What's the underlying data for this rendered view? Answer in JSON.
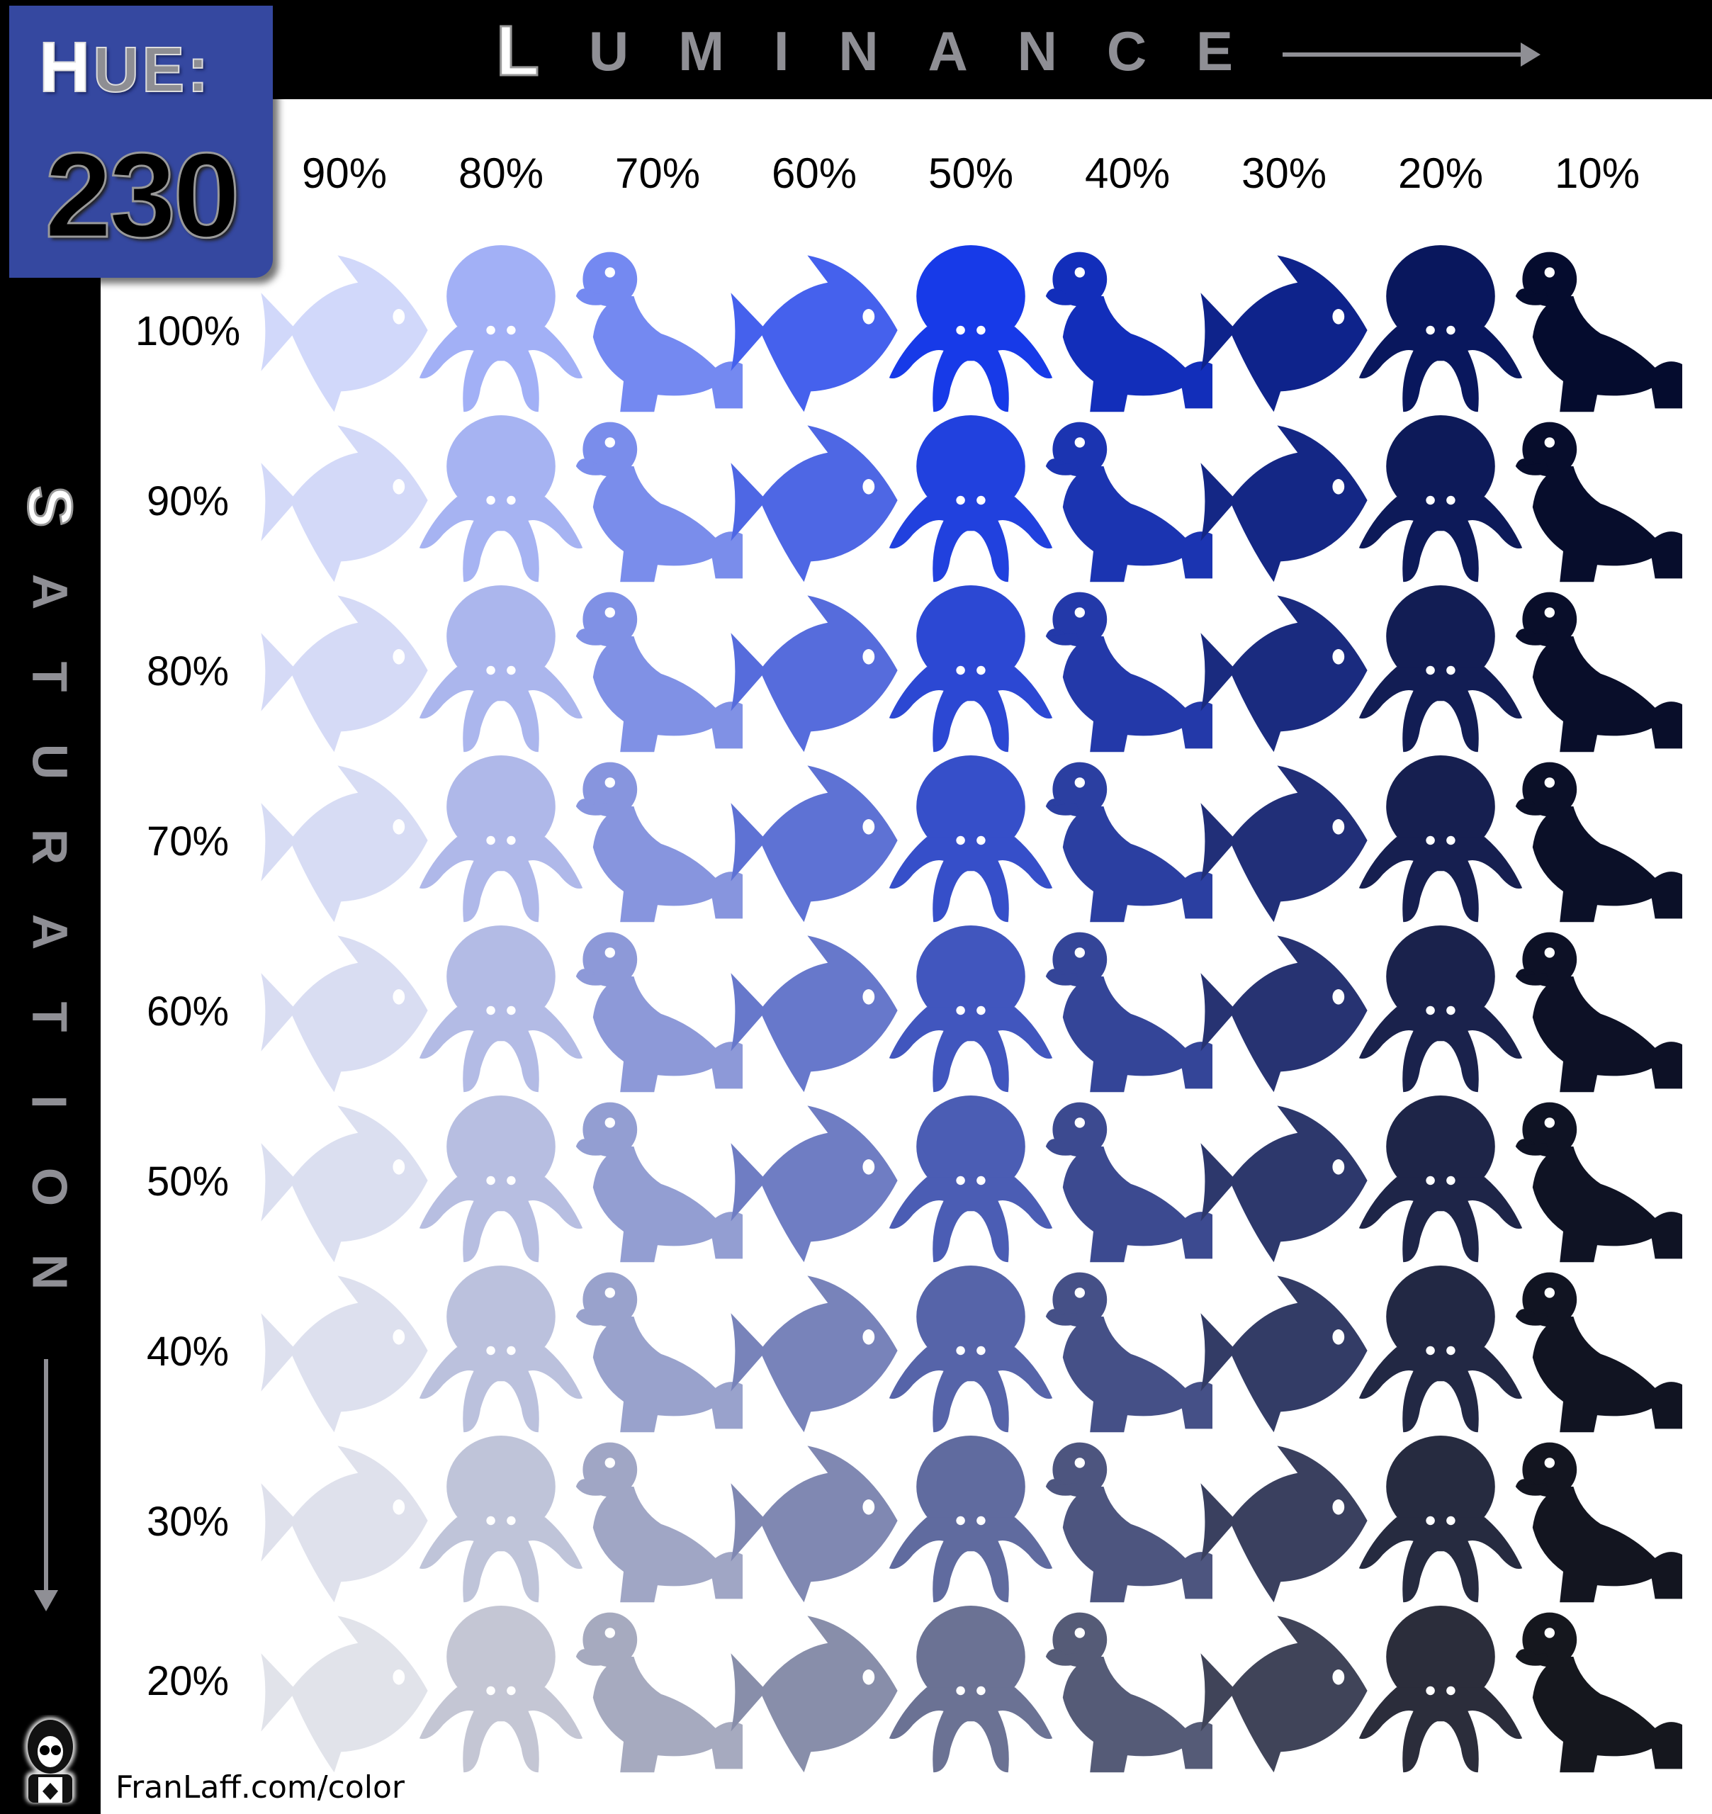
{
  "hue": {
    "label_cap": "H",
    "label_rest": "UE:",
    "value": "230"
  },
  "luminance_title": [
    "L",
    "U",
    "M",
    "I",
    "N",
    "A",
    "N",
    "C",
    "E"
  ],
  "saturation_title": [
    "S",
    "A",
    "T",
    "U",
    "R",
    "A",
    "T",
    "I",
    "O",
    "N"
  ],
  "columns": [
    "90%",
    "80%",
    "70%",
    "60%",
    "50%",
    "40%",
    "30%",
    "20%",
    "10%"
  ],
  "rows": [
    "100%",
    "90%",
    "80%",
    "70%",
    "60%",
    "50%",
    "40%",
    "30%",
    "20%"
  ],
  "luminance_values": [
    90,
    80,
    70,
    60,
    50,
    40,
    30,
    20,
    10
  ],
  "saturation_values": [
    100,
    90,
    80,
    70,
    60,
    50,
    40,
    30,
    20
  ],
  "animal_pattern": [
    "fish",
    "octopus",
    "seal"
  ],
  "footer": "FranLaff.com/color",
  "hue_box_color": "#3548a0"
}
